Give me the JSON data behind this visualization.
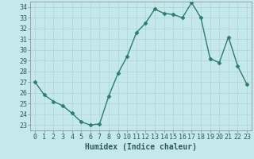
{
  "x": [
    0,
    1,
    2,
    3,
    4,
    5,
    6,
    7,
    8,
    9,
    10,
    11,
    12,
    13,
    14,
    15,
    16,
    17,
    18,
    19,
    20,
    21,
    22,
    23
  ],
  "y": [
    27.0,
    25.8,
    25.2,
    24.8,
    24.1,
    23.3,
    23.0,
    23.1,
    25.7,
    27.8,
    29.4,
    31.6,
    32.5,
    33.8,
    33.4,
    33.3,
    33.0,
    34.4,
    33.0,
    29.2,
    28.8,
    31.2,
    28.5,
    26.8
  ],
  "line_color": "#2e7d6e",
  "marker": "D",
  "marker_size": 2.5,
  "bg_color": "#c5e8ec",
  "grid_color": "#aed4d8",
  "xlabel": "Humidex (Indice chaleur)",
  "xlim": [
    -0.5,
    23.5
  ],
  "ylim": [
    22.5,
    34.5
  ],
  "yticks": [
    23,
    24,
    25,
    26,
    27,
    28,
    29,
    30,
    31,
    32,
    33,
    34
  ],
  "xticks": [
    0,
    1,
    2,
    3,
    4,
    5,
    6,
    7,
    8,
    9,
    10,
    11,
    12,
    13,
    14,
    15,
    16,
    17,
    18,
    19,
    20,
    21,
    22,
    23
  ],
  "xlabel_fontsize": 7,
  "tick_fontsize": 6,
  "line_width": 1.0
}
